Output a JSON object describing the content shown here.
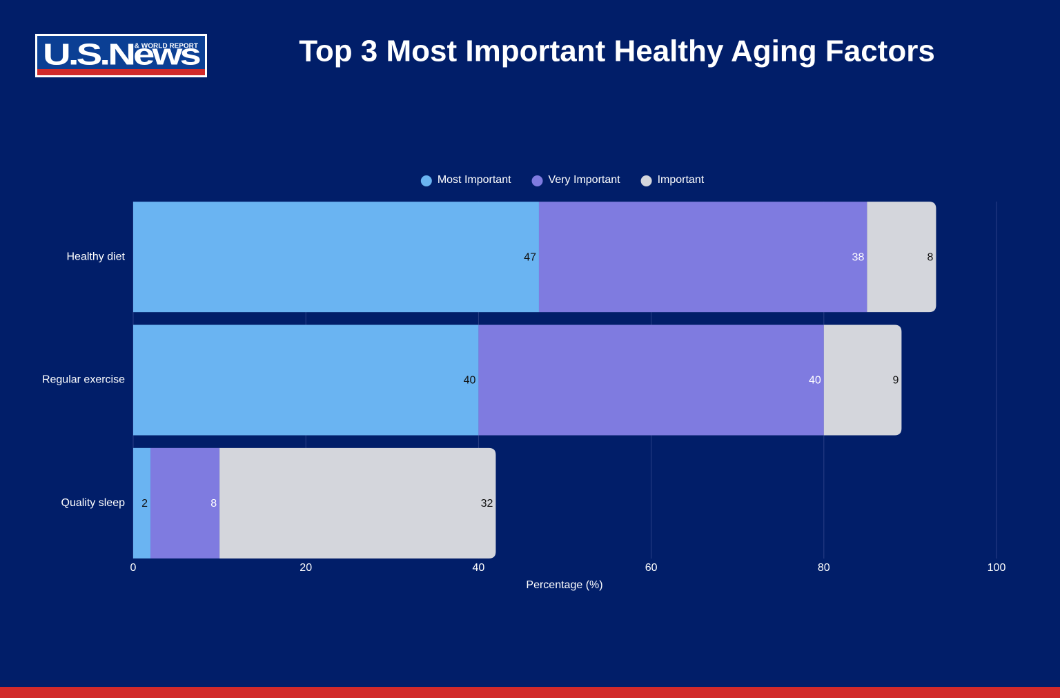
{
  "logo": {
    "name": "U.S.News",
    "tagline": "& WORLD REPORT"
  },
  "chart_data": {
    "type": "bar",
    "orientation": "horizontal",
    "stacked": true,
    "title": "Top 3 Most Important Healthy Aging Factors",
    "xlabel": "Percentage (%)",
    "categories": [
      "Healthy diet",
      "Regular exercise",
      "Quality sleep"
    ],
    "series": [
      {
        "name": "Most Important",
        "color": "#6ab4f2",
        "values": [
          47,
          40,
          2
        ]
      },
      {
        "name": "Very Important",
        "color": "#7f7be0",
        "values": [
          38,
          40,
          8
        ]
      },
      {
        "name": "Important",
        "color": "#d4d6dc",
        "values": [
          8,
          9,
          32
        ]
      }
    ],
    "xlim": [
      0,
      100
    ],
    "xticks": [
      0,
      20,
      40,
      60,
      80,
      100
    ],
    "grid": true,
    "legend": "top"
  }
}
